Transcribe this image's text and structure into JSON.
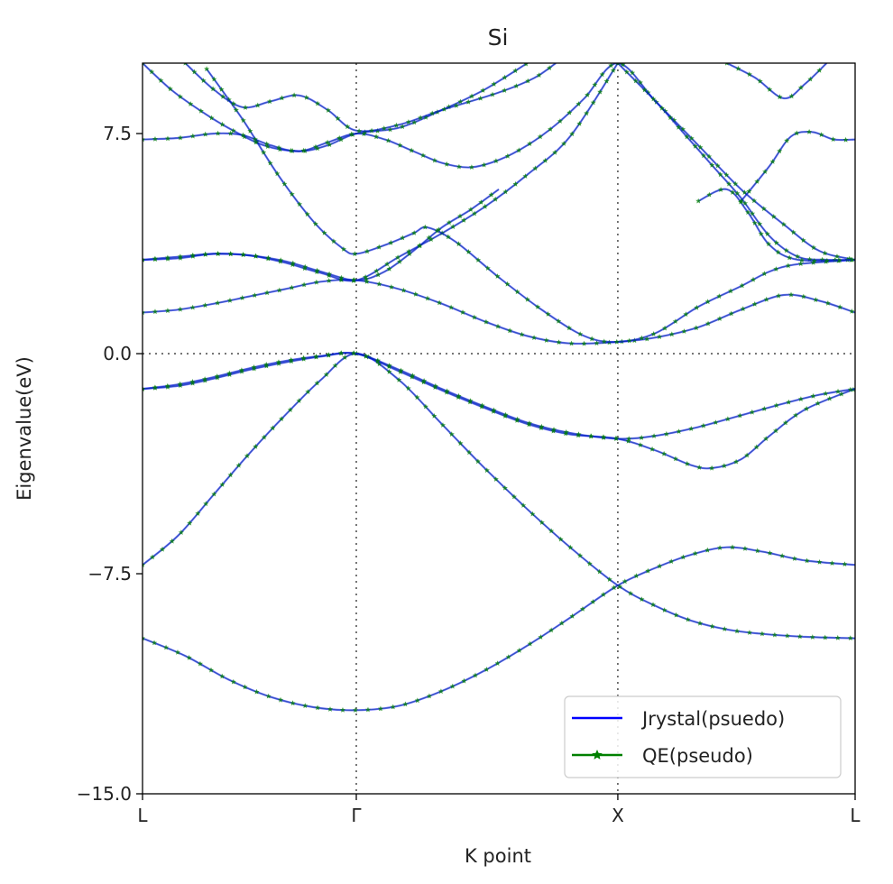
{
  "chart_data": {
    "type": "line",
    "title": "Si",
    "xlabel": "K point",
    "ylabel": "Eigenvalue(eV)",
    "ylim": [
      -15.0,
      9.9
    ],
    "xlim": [
      0,
      1
    ],
    "x_ticks": [
      {
        "label": "L",
        "pos": 0.0
      },
      {
        "label": "Γ",
        "pos": 0.3
      },
      {
        "label": "X",
        "pos": 0.667
      },
      {
        "label": "L",
        "pos": 1.0
      }
    ],
    "y_ticks": [
      -15.0,
      -7.5,
      0.0,
      7.5
    ],
    "y_tick_labels": [
      "−15.0",
      "−7.5",
      "0.0",
      "7.5"
    ],
    "reference_lines": {
      "x": [
        0.3,
        0.667
      ],
      "y": [
        0.0
      ],
      "style": "dotted"
    },
    "legend": {
      "placement": "lower-right",
      "entries": [
        {
          "label": "Jrystal(psuedo)",
          "color": "#0000ff",
          "marker": "line"
        },
        {
          "label": "QE(pseudo)",
          "color": "#008000",
          "marker": "star"
        }
      ]
    },
    "series_colors": {
      "jrystal": "#0000ff",
      "qe": "#008000"
    },
    "bands": [
      {
        "name": "band-1",
        "points": [
          [
            0.0,
            -9.7
          ],
          [
            0.06,
            -10.3
          ],
          [
            0.12,
            -11.1
          ],
          [
            0.18,
            -11.7
          ],
          [
            0.24,
            -12.05
          ],
          [
            0.3,
            -12.15
          ],
          [
            0.36,
            -12.0
          ],
          [
            0.42,
            -11.5
          ],
          [
            0.48,
            -10.8
          ],
          [
            0.54,
            -9.95
          ],
          [
            0.6,
            -9.0
          ],
          [
            0.667,
            -7.9
          ],
          [
            0.72,
            -7.3
          ],
          [
            0.77,
            -6.85
          ],
          [
            0.82,
            -6.6
          ],
          [
            0.87,
            -6.75
          ],
          [
            0.93,
            -7.05
          ],
          [
            1.0,
            -7.2
          ]
        ]
      },
      {
        "name": "band-2",
        "points": [
          [
            0.0,
            -7.2
          ],
          [
            0.05,
            -6.2
          ],
          [
            0.1,
            -4.8
          ],
          [
            0.15,
            -3.4
          ],
          [
            0.2,
            -2.1
          ],
          [
            0.25,
            -0.9
          ],
          [
            0.3,
            0.0
          ],
          [
            0.36,
            -0.9
          ],
          [
            0.42,
            -2.4
          ],
          [
            0.48,
            -3.9
          ],
          [
            0.54,
            -5.3
          ],
          [
            0.6,
            -6.6
          ],
          [
            0.667,
            -7.9
          ],
          [
            0.72,
            -8.6
          ],
          [
            0.77,
            -9.1
          ],
          [
            0.82,
            -9.4
          ],
          [
            0.87,
            -9.55
          ],
          [
            0.93,
            -9.65
          ],
          [
            1.0,
            -9.7
          ]
        ]
      },
      {
        "name": "band-3",
        "points": [
          [
            0.0,
            -1.2
          ],
          [
            0.05,
            -1.05
          ],
          [
            0.1,
            -0.8
          ],
          [
            0.15,
            -0.5
          ],
          [
            0.2,
            -0.25
          ],
          [
            0.25,
            -0.08
          ],
          [
            0.3,
            0.0
          ],
          [
            0.36,
            -0.6
          ],
          [
            0.42,
            -1.25
          ],
          [
            0.48,
            -1.85
          ],
          [
            0.54,
            -2.4
          ],
          [
            0.6,
            -2.75
          ],
          [
            0.667,
            -2.9
          ],
          [
            0.72,
            -3.3
          ],
          [
            0.77,
            -3.8
          ],
          [
            0.8,
            -3.9
          ],
          [
            0.84,
            -3.6
          ],
          [
            0.88,
            -2.8
          ],
          [
            0.93,
            -1.9
          ],
          [
            1.0,
            -1.2
          ]
        ]
      },
      {
        "name": "band-4",
        "points": [
          [
            0.0,
            -1.2
          ],
          [
            0.05,
            -1.1
          ],
          [
            0.1,
            -0.85
          ],
          [
            0.15,
            -0.55
          ],
          [
            0.2,
            -0.3
          ],
          [
            0.25,
            -0.1
          ],
          [
            0.3,
            0.0
          ],
          [
            0.36,
            -0.55
          ],
          [
            0.42,
            -1.2
          ],
          [
            0.48,
            -1.8
          ],
          [
            0.54,
            -2.35
          ],
          [
            0.6,
            -2.7
          ],
          [
            0.667,
            -2.9
          ],
          [
            0.72,
            -2.8
          ],
          [
            0.78,
            -2.5
          ],
          [
            0.84,
            -2.1
          ],
          [
            0.9,
            -1.7
          ],
          [
            0.95,
            -1.4
          ],
          [
            1.0,
            -1.2
          ]
        ]
      },
      {
        "name": "band-5",
        "points": [
          [
            0.0,
            1.4
          ],
          [
            0.05,
            1.5
          ],
          [
            0.1,
            1.7
          ],
          [
            0.15,
            1.95
          ],
          [
            0.2,
            2.2
          ],
          [
            0.25,
            2.45
          ],
          [
            0.3,
            2.5
          ],
          [
            0.36,
            2.2
          ],
          [
            0.42,
            1.7
          ],
          [
            0.48,
            1.1
          ],
          [
            0.54,
            0.6
          ],
          [
            0.6,
            0.35
          ],
          [
            0.667,
            0.4
          ],
          [
            0.72,
            0.55
          ],
          [
            0.78,
            0.9
          ],
          [
            0.84,
            1.5
          ],
          [
            0.9,
            2.0
          ],
          [
            0.95,
            1.8
          ],
          [
            1.0,
            1.4
          ]
        ]
      },
      {
        "name": "band-6",
        "points": [
          [
            0.0,
            3.2
          ],
          [
            0.05,
            3.25
          ],
          [
            0.1,
            3.4
          ],
          [
            0.15,
            3.35
          ],
          [
            0.2,
            3.1
          ],
          [
            0.25,
            2.75
          ],
          [
            0.3,
            2.5
          ],
          [
            0.36,
            3.3
          ],
          [
            0.42,
            4.1
          ],
          [
            0.48,
            5.0
          ],
          [
            0.54,
            6.1
          ],
          [
            0.6,
            7.4
          ],
          [
            0.667,
            9.9
          ]
        ]
      },
      {
        "name": "band-7",
        "points": [
          [
            0.0,
            3.2
          ],
          [
            0.05,
            3.3
          ],
          [
            0.1,
            3.4
          ],
          [
            0.15,
            3.35
          ],
          [
            0.2,
            3.15
          ],
          [
            0.25,
            2.8
          ],
          [
            0.3,
            2.5
          ],
          [
            0.34,
            2.8
          ],
          [
            0.38,
            3.5
          ],
          [
            0.42,
            4.3
          ],
          [
            0.46,
            4.9
          ],
          [
            0.5,
            5.6
          ]
        ]
      },
      {
        "name": "band-8",
        "points": [
          [
            0.09,
            9.7
          ],
          [
            0.14,
            8.0
          ],
          [
            0.19,
            6.1
          ],
          [
            0.24,
            4.5
          ],
          [
            0.28,
            3.6
          ],
          [
            0.3,
            3.4
          ],
          [
            0.34,
            3.7
          ],
          [
            0.38,
            4.1
          ],
          [
            0.4,
            4.3
          ],
          [
            0.44,
            3.8
          ],
          [
            0.5,
            2.6
          ],
          [
            0.56,
            1.5
          ],
          [
            0.62,
            0.6
          ],
          [
            0.667,
            0.4
          ],
          [
            0.72,
            0.7
          ],
          [
            0.78,
            1.6
          ],
          [
            0.84,
            2.3
          ],
          [
            0.88,
            2.8
          ],
          [
            0.92,
            3.05
          ],
          [
            1.0,
            3.2
          ]
        ]
      },
      {
        "name": "band-9",
        "points": [
          [
            0.0,
            9.9
          ],
          [
            0.04,
            9.0
          ],
          [
            0.08,
            8.3
          ],
          [
            0.12,
            7.7
          ],
          [
            0.17,
            7.1
          ],
          [
            0.22,
            6.9
          ],
          [
            0.26,
            7.1
          ],
          [
            0.3,
            7.5
          ],
          [
            0.36,
            7.7
          ],
          [
            0.42,
            8.3
          ],
          [
            0.48,
            9.0
          ],
          [
            0.54,
            9.9
          ]
        ]
      },
      {
        "name": "band-10",
        "points": [
          [
            0.0,
            7.3
          ],
          [
            0.05,
            7.35
          ],
          [
            0.1,
            7.5
          ],
          [
            0.14,
            7.45
          ],
          [
            0.18,
            7.1
          ],
          [
            0.22,
            6.9
          ],
          [
            0.26,
            7.2
          ],
          [
            0.3,
            7.5
          ],
          [
            0.34,
            7.3
          ],
          [
            0.38,
            6.9
          ],
          [
            0.42,
            6.5
          ],
          [
            0.46,
            6.35
          ],
          [
            0.5,
            6.6
          ],
          [
            0.54,
            7.1
          ],
          [
            0.58,
            7.8
          ],
          [
            0.62,
            8.7
          ],
          [
            0.667,
            9.9
          ],
          [
            0.72,
            8.6
          ],
          [
            0.78,
            7.1
          ],
          [
            0.84,
            5.6
          ],
          [
            0.9,
            4.4
          ],
          [
            0.95,
            3.5
          ],
          [
            1.0,
            3.2
          ]
        ]
      },
      {
        "name": "band-11",
        "points": [
          [
            0.06,
            9.9
          ],
          [
            0.1,
            9.0
          ],
          [
            0.14,
            8.4
          ],
          [
            0.18,
            8.6
          ],
          [
            0.22,
            8.8
          ],
          [
            0.26,
            8.3
          ],
          [
            0.3,
            7.6
          ],
          [
            0.36,
            7.8
          ],
          [
            0.42,
            8.3
          ],
          [
            0.5,
            8.9
          ],
          [
            0.55,
            9.4
          ],
          [
            0.58,
            9.9
          ]
        ]
      },
      {
        "name": "band-12",
        "points": [
          [
            0.667,
            9.9
          ],
          [
            0.72,
            8.6
          ],
          [
            0.76,
            7.5
          ],
          [
            0.8,
            6.4
          ],
          [
            0.84,
            5.3
          ],
          [
            0.88,
            4.0
          ],
          [
            0.92,
            3.3
          ],
          [
            0.96,
            3.2
          ],
          [
            1.0,
            3.2
          ]
        ]
      },
      {
        "name": "band-13",
        "points": [
          [
            0.78,
            5.2
          ],
          [
            0.82,
            5.6
          ],
          [
            0.85,
            4.8
          ],
          [
            0.88,
            3.7
          ],
          [
            0.92,
            3.2
          ],
          [
            1.0,
            3.2
          ]
        ]
      },
      {
        "name": "band-14",
        "points": [
          [
            0.82,
            9.9
          ],
          [
            0.86,
            9.4
          ],
          [
            0.9,
            8.7
          ],
          [
            0.93,
            9.2
          ],
          [
            0.96,
            9.9
          ]
        ]
      },
      {
        "name": "band-15",
        "points": [
          [
            0.84,
            5.2
          ],
          [
            0.88,
            6.4
          ],
          [
            0.91,
            7.4
          ],
          [
            0.94,
            7.55
          ],
          [
            0.97,
            7.3
          ],
          [
            1.0,
            7.3
          ]
        ]
      }
    ]
  }
}
